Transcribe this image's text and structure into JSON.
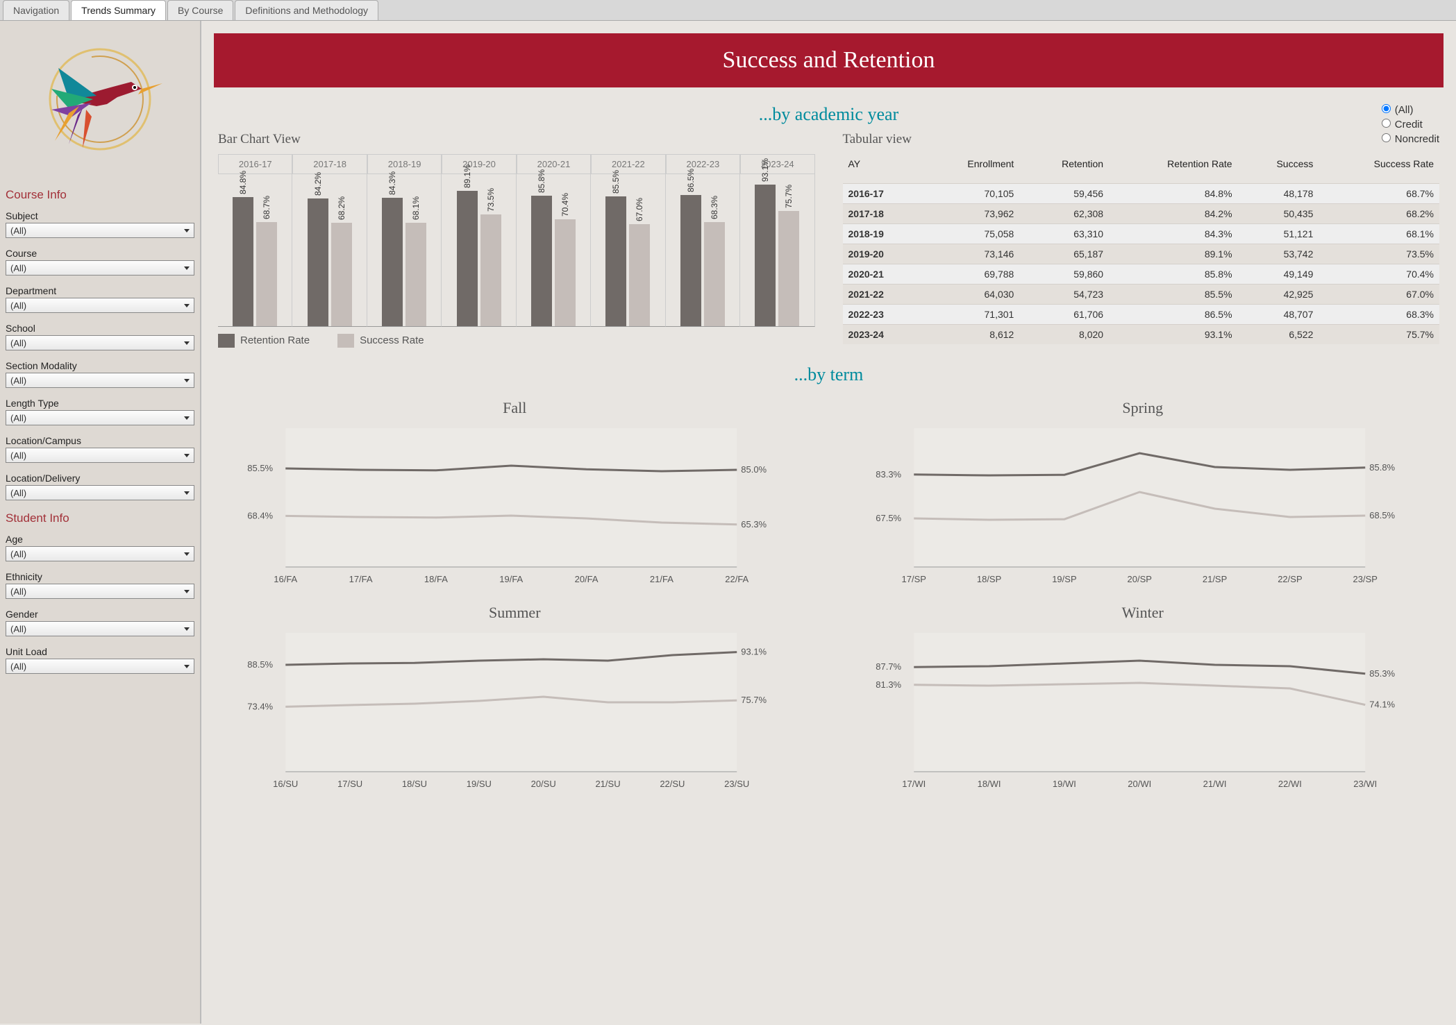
{
  "tabs": [
    "Navigation",
    "Trends Summary",
    "By Course",
    "Definitions and Methodology"
  ],
  "active_tab": "Trends Summary",
  "banner_title": "Success and Retention",
  "credit_filter": {
    "options": [
      "(All)",
      "Credit",
      "Noncredit"
    ],
    "selected": "(All)"
  },
  "sidebar": {
    "course_title": "Course Info",
    "student_title": "Student Info",
    "course_filters": [
      {
        "label": "Subject",
        "value": "(All)"
      },
      {
        "label": "Course",
        "value": "(All)"
      },
      {
        "label": "Department",
        "value": "(All)"
      },
      {
        "label": "School",
        "value": "(All)"
      },
      {
        "label": "Section Modality",
        "value": "(All)"
      },
      {
        "label": "Length Type",
        "value": "(All)"
      },
      {
        "label": "Location/Campus",
        "value": "(All)"
      },
      {
        "label": "Location/Delivery",
        "value": "(All)"
      }
    ],
    "student_filters": [
      {
        "label": "Age",
        "value": "(All)"
      },
      {
        "label": "Ethnicity",
        "value": "(All)"
      },
      {
        "label": "Gender",
        "value": "(All)"
      },
      {
        "label": "Unit Load",
        "value": "(All)"
      }
    ]
  },
  "section_ay": "...by academic year",
  "section_term": "...by term",
  "bar_chart": {
    "title": "Bar Chart View",
    "categories": [
      "2016-17",
      "2017-18",
      "2018-19",
      "2019-20",
      "2020-21",
      "2021-22",
      "2022-23",
      "2023-24"
    ],
    "retention": [
      84.8,
      84.2,
      84.3,
      89.1,
      85.8,
      85.5,
      86.5,
      93.1
    ],
    "success": [
      68.7,
      68.2,
      68.1,
      73.5,
      70.4,
      67.0,
      68.3,
      75.7
    ],
    "legend_retention": "Retention Rate",
    "legend_success": "Success Rate",
    "retention_color": "#706a67",
    "success_color": "#c5bdb9",
    "y_max": 100
  },
  "table": {
    "title": "Tabular view",
    "columns": [
      "AY",
      "Enrollment",
      "Retention",
      "Retention Rate",
      "Success",
      "Success Rate"
    ],
    "rows": [
      [
        "2016-17",
        "70,105",
        "59,456",
        "84.8%",
        "48,178",
        "68.7%"
      ],
      [
        "2017-18",
        "73,962",
        "62,308",
        "84.2%",
        "50,435",
        "68.2%"
      ],
      [
        "2018-19",
        "75,058",
        "63,310",
        "84.3%",
        "51,121",
        "68.1%"
      ],
      [
        "2019-20",
        "73,146",
        "65,187",
        "89.1%",
        "53,742",
        "73.5%"
      ],
      [
        "2020-21",
        "69,788",
        "59,860",
        "85.8%",
        "49,149",
        "70.4%"
      ],
      [
        "2021-22",
        "64,030",
        "54,723",
        "85.5%",
        "42,925",
        "67.0%"
      ],
      [
        "2022-23",
        "71,301",
        "61,706",
        "86.5%",
        "48,707",
        "68.3%"
      ],
      [
        "2023-24",
        "8,612",
        "8,020",
        "93.1%",
        "6,522",
        "75.7%"
      ]
    ]
  },
  "term_charts": {
    "y_min": 0,
    "y_max": 100,
    "panels": [
      {
        "title": "Fall",
        "x_labels": [
          "16/FA",
          "17/FA",
          "18/FA",
          "19/FA",
          "20/FA",
          "21/FA",
          "22/FA"
        ],
        "retention": [
          85.5,
          85.0,
          84.8,
          86.5,
          85.2,
          84.5,
          85.0
        ],
        "success": [
          68.4,
          68.0,
          67.8,
          68.5,
          67.5,
          66.0,
          65.3
        ],
        "start_ret": "85.5%",
        "start_suc": "68.4%",
        "end_ret": "85.0%",
        "end_suc": "65.3%"
      },
      {
        "title": "Spring",
        "x_labels": [
          "17/SP",
          "18/SP",
          "19/SP",
          "20/SP",
          "21/SP",
          "22/SP",
          "23/SP"
        ],
        "retention": [
          83.3,
          83.0,
          83.2,
          91.0,
          86.0,
          85.0,
          85.8
        ],
        "success": [
          67.5,
          67.0,
          67.2,
          77.0,
          71.0,
          68.0,
          68.5
        ],
        "start_ret": "83.3%",
        "start_suc": "67.5%",
        "end_ret": "85.8%",
        "end_suc": "68.5%"
      },
      {
        "title": "Summer",
        "x_labels": [
          "16/SU",
          "17/SU",
          "18/SU",
          "19/SU",
          "20/SU",
          "21/SU",
          "22/SU",
          "23/SU"
        ],
        "retention": [
          88.5,
          89.0,
          89.2,
          90.0,
          90.5,
          90.0,
          92.0,
          93.1
        ],
        "success": [
          73.4,
          74.0,
          74.5,
          75.5,
          77.0,
          75.0,
          75.0,
          75.7
        ],
        "start_ret": "88.5%",
        "start_suc": "73.4%",
        "end_ret": "93.1%",
        "end_suc": "75.7%"
      },
      {
        "title": "Winter",
        "x_labels": [
          "17/WI",
          "18/WI",
          "19/WI",
          "20/WI",
          "21/WI",
          "22/WI",
          "23/WI"
        ],
        "retention": [
          87.7,
          88.0,
          89.0,
          90.0,
          88.5,
          88.0,
          85.3
        ],
        "success": [
          81.3,
          81.0,
          81.5,
          82.0,
          81.0,
          80.0,
          74.1
        ],
        "start_ret": "87.7%",
        "start_suc": "81.3%",
        "end_ret": "85.3%",
        "end_suc": "74.1%"
      }
    ]
  },
  "colors": {
    "accent": "#a6192e",
    "teal": "#008b9d",
    "retention": "#706a67",
    "success": "#c5bdb9"
  }
}
